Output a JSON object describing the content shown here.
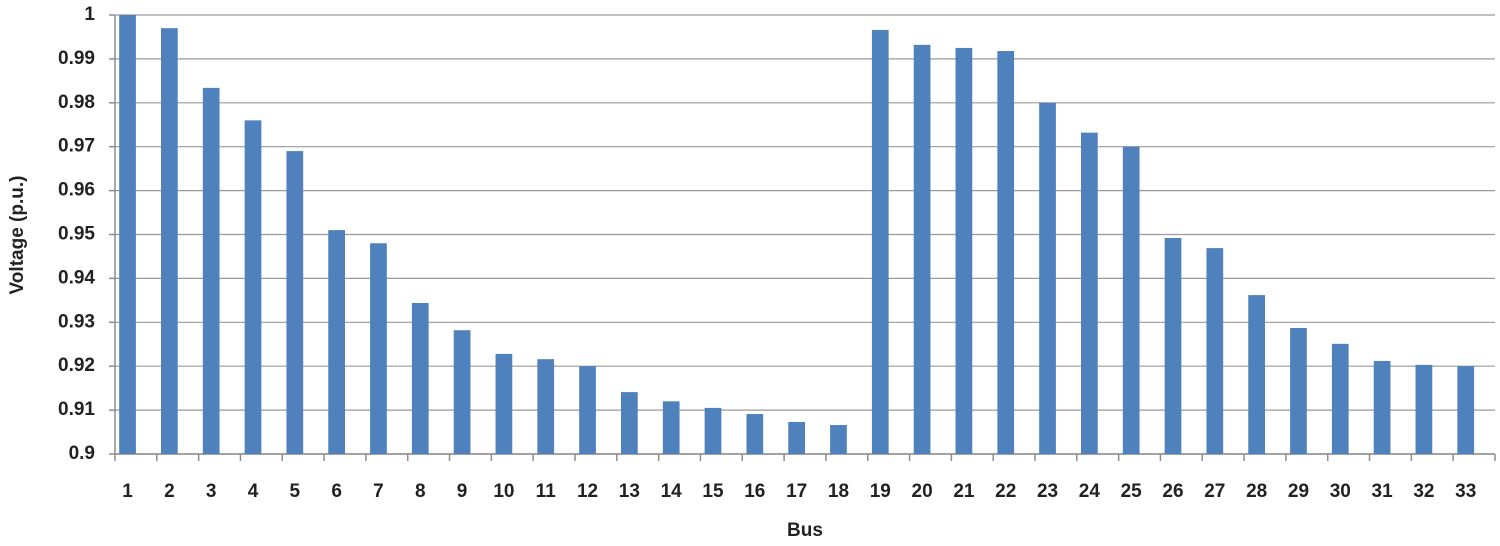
{
  "chart_data": {
    "type": "bar",
    "x_label": "Bus",
    "y_label": "Voltage (p.u.)",
    "categories": [
      "1",
      "2",
      "3",
      "4",
      "5",
      "6",
      "7",
      "8",
      "9",
      "10",
      "11",
      "12",
      "13",
      "14",
      "15",
      "16",
      "17",
      "18",
      "19",
      "20",
      "21",
      "22",
      "23",
      "24",
      "25",
      "26",
      "27",
      "28",
      "29",
      "30",
      "31",
      "32",
      "33"
    ],
    "values": [
      1.0,
      0.997,
      0.9834,
      0.976,
      0.969,
      0.951,
      0.948,
      0.9344,
      0.9282,
      0.9228,
      0.9216,
      0.92,
      0.9141,
      0.912,
      0.9105,
      0.9091,
      0.9073,
      0.9066,
      0.9966,
      0.9932,
      0.9925,
      0.9918,
      0.98,
      0.9732,
      0.97,
      0.9492,
      0.9469,
      0.9362,
      0.9287,
      0.9251,
      0.9212,
      0.9203,
      0.92
    ],
    "color": "#4f81bd",
    "ylim": [
      0.9,
      1
    ],
    "yticks": [
      0.9,
      0.91,
      0.92,
      0.93,
      0.94,
      0.95,
      0.96,
      0.97,
      0.98,
      0.99,
      1
    ],
    "grid": true
  }
}
